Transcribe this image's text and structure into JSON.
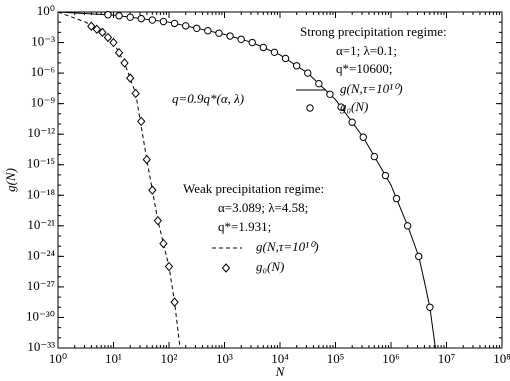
{
  "chart_data": {
    "type": "line",
    "xlabel": "N",
    "ylabel": "g(N)",
    "xscale": "log",
    "yscale": "log",
    "xlim": [
      1,
      100000000
    ],
    "ylim": [
      1e-33,
      1
    ],
    "xticks": [
      {
        "value": 1,
        "label": "10⁰"
      },
      {
        "value": 10,
        "label": "10¹"
      },
      {
        "value": 100,
        "label": "10²"
      },
      {
        "value": 1000,
        "label": "10³"
      },
      {
        "value": 10000,
        "label": "10⁴"
      },
      {
        "value": 100000,
        "label": "10⁵"
      },
      {
        "value": 1000000,
        "label": "10⁶"
      },
      {
        "value": 10000000,
        "label": "10⁷"
      },
      {
        "value": 100000000,
        "label": "10⁸"
      }
    ],
    "yticks": [
      {
        "value": 1,
        "label": "10⁰"
      },
      {
        "value": 0.001,
        "label": "10⁻³"
      },
      {
        "value": 1e-06,
        "label": "10⁻⁶"
      },
      {
        "value": 1e-09,
        "label": "10⁻⁹"
      },
      {
        "value": 1e-12,
        "label": "10⁻¹²"
      },
      {
        "value": 1e-15,
        "label": "10⁻¹⁵"
      },
      {
        "value": 1e-18,
        "label": "10⁻¹⁸"
      },
      {
        "value": 1e-21,
        "label": "10⁻²¹"
      },
      {
        "value": 1e-24,
        "label": "10⁻²⁴"
      },
      {
        "value": 1e-27,
        "label": "10⁻²⁷"
      },
      {
        "value": 1e-30,
        "label": "10⁻³⁰"
      },
      {
        "value": 1e-33,
        "label": "10⁻³³"
      }
    ],
    "annotations": [
      {
        "text": "q=0.9q*(α, λ)"
      }
    ],
    "legends": [
      {
        "title": "Strong precipitation regime:",
        "lines": [
          "α=1; λ=0.1;",
          "q*=10600;"
        ]
      },
      {
        "title": "Weak precipitation regime:",
        "lines": [
          "α=3.089; λ=4.58;",
          "q*=1.931;"
        ]
      }
    ],
    "series": [
      {
        "name": "g(N,τ=10¹⁰)",
        "style": "solid",
        "color": "#000000",
        "x": [
          1,
          10,
          100,
          1000,
          3162,
          10000,
          31623,
          100000,
          316228,
          1000000,
          1995262,
          3162278,
          4000000,
          5011872,
          6309573
        ],
        "values": [
          1,
          0.5,
          0.1,
          0.0063,
          0.001,
          6.3e-05,
          1e-06,
          2.5e-09,
          5e-13,
          1e-17,
          1e-21,
          1e-24,
          3.2e-27,
          1e-29,
          1e-33
        ]
      },
      {
        "name": "g₀(N)",
        "style": "circle",
        "color": "#000000",
        "x": [
          7.94,
          12.6,
          20,
          31.6,
          50.1,
          79.4,
          126,
          200,
          316,
          501,
          794,
          1259,
          1995,
          3162,
          5012,
          7943,
          12589,
          19953,
          31623,
          50119,
          79433,
          125893,
          199526,
          316228,
          501187,
          794328,
          1258925,
          1995262,
          3162278,
          5011872
        ],
        "values": [
          0.537,
          0.427,
          0.309,
          0.224,
          0.162,
          0.117,
          0.0759,
          0.0437,
          0.0251,
          0.0145,
          0.0083,
          0.00437,
          0.00209,
          0.001,
          0.00033,
          0.00011,
          2.75e-05,
          5.2e-06,
          1e-06,
          9.1e-08,
          8.3e-09,
          4.6e-10,
          1.5e-11,
          5e-13,
          6.3e-15,
          8.7e-17,
          4.7e-19,
          1e-21,
          1e-24,
          1e-29
        ]
      },
      {
        "name": "g(N,τ=10¹⁰)",
        "style": "dashed",
        "color": "#000000",
        "x": [
          1,
          3.16,
          6.31,
          10,
          15.8,
          25.1,
          39.8,
          63.1,
          100,
          126,
          158
        ],
        "values": [
          1,
          0.1,
          0.01,
          0.001,
          1e-05,
          1e-08,
          3.2e-15,
          3.2e-21,
          1e-25,
          3.2e-29,
          1e-33
        ]
      },
      {
        "name": "g₀(N)",
        "style": "diamond",
        "color": "#000000",
        "x": [
          3.98,
          5.01,
          6.31,
          7.94,
          10,
          12.6,
          15.8,
          20,
          25.1,
          31.6,
          39.8,
          50.1,
          63.1,
          79.4,
          100,
          126
        ],
        "values": [
          0.0398,
          0.02,
          0.01,
          0.00316,
          0.001,
          0.0001,
          1e-05,
          3.2e-07,
          1e-08,
          1.8e-11,
          3.2e-15,
          3.2e-18,
          3.2e-21,
          1.8e-23,
          1e-25,
          3.2e-29
        ]
      }
    ]
  }
}
